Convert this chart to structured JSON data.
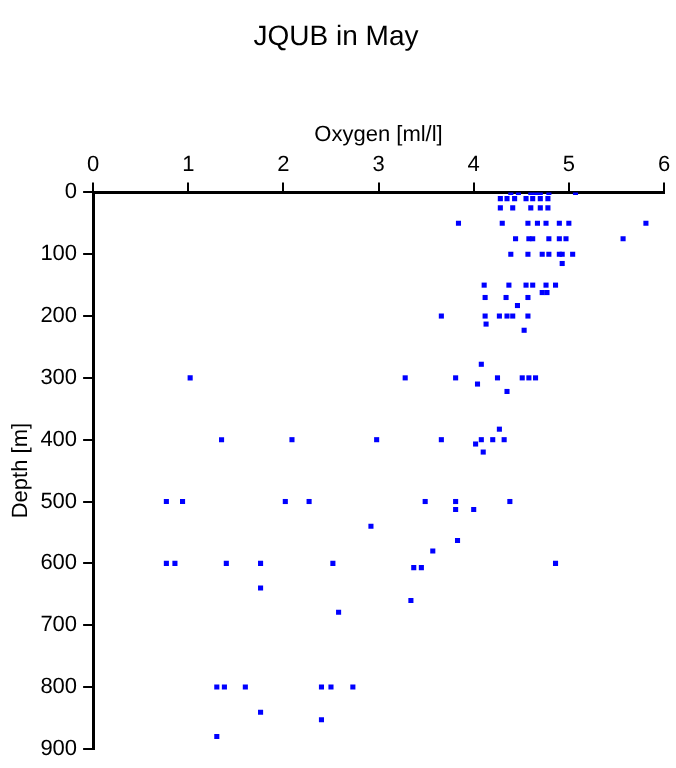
{
  "chart_data": {
    "type": "scatter",
    "title": "JQUB in May",
    "xlabel": "Oxygen [ml/l]",
    "ylabel": "Depth [m]",
    "xlim": [
      0,
      6
    ],
    "xticks": [
      0,
      1,
      2,
      3,
      4,
      5,
      6
    ],
    "ylim": [
      900,
      0
    ],
    "yticks": [
      0,
      100,
      200,
      300,
      400,
      500,
      600,
      700,
      800,
      900
    ],
    "grid": false,
    "legend": false,
    "marker": "square",
    "series": [
      {
        "color": "#0000ff",
        "x": [
          4.39,
          4.47,
          4.6,
          4.65,
          4.7,
          4.79,
          5.07,
          4.28,
          4.35,
          4.43,
          4.55,
          4.62,
          4.7,
          4.78,
          4.28,
          4.41,
          4.6,
          4.7,
          4.78,
          3.84,
          4.3,
          4.57,
          4.67,
          4.76,
          4.9,
          5.0,
          5.81,
          4.44,
          4.58,
          4.62,
          4.79,
          4.9,
          4.97,
          5.57,
          4.39,
          4.57,
          4.72,
          4.79,
          4.9,
          4.93,
          5.04,
          4.93,
          4.11,
          4.37,
          4.55,
          4.62,
          4.76,
          4.86,
          4.72,
          4.77,
          4.12,
          4.34,
          4.57,
          4.46,
          3.66,
          4.12,
          4.27,
          4.35,
          4.41,
          4.57,
          4.13,
          4.53,
          4.08,
          1.02,
          3.28,
          3.81,
          4.25,
          4.51,
          4.58,
          4.65,
          4.04,
          4.35,
          4.27,
          1.35,
          2.09,
          2.98,
          3.66,
          4.08,
          4.2,
          4.32,
          4.02,
          4.1,
          0.77,
          0.94,
          2.02,
          2.27,
          3.49,
          3.81,
          4.38,
          3.81,
          4.0,
          2.92,
          3.83,
          3.57,
          0.77,
          0.86,
          1.4,
          1.76,
          2.52,
          4.86,
          3.37,
          3.45,
          1.76,
          3.34,
          2.58,
          1.3,
          1.38,
          1.6,
          2.4,
          2.5,
          2.73,
          1.76,
          2.4,
          1.3
        ],
        "values": [
          0,
          0,
          0,
          0,
          0,
          0,
          0,
          10,
          10,
          10,
          10,
          10,
          10,
          10,
          25,
          25,
          25,
          25,
          25,
          50,
          50,
          50,
          50,
          50,
          50,
          50,
          50,
          75,
          75,
          75,
          75,
          75,
          75,
          75,
          100,
          100,
          100,
          100,
          100,
          100,
          100,
          115,
          150,
          150,
          150,
          150,
          150,
          150,
          162,
          162,
          170,
          170,
          170,
          183,
          200,
          200,
          200,
          200,
          200,
          200,
          213,
          223,
          278,
          300,
          300,
          300,
          300,
          300,
          300,
          300,
          310,
          322,
          383,
          400,
          400,
          400,
          400,
          400,
          400,
          400,
          407,
          420,
          500,
          500,
          500,
          500,
          500,
          500,
          500,
          513,
          513,
          540,
          563,
          580,
          600,
          600,
          600,
          600,
          600,
          600,
          607,
          607,
          640,
          660,
          679,
          800,
          800,
          800,
          800,
          800,
          800,
          841,
          853,
          880
        ]
      }
    ]
  }
}
